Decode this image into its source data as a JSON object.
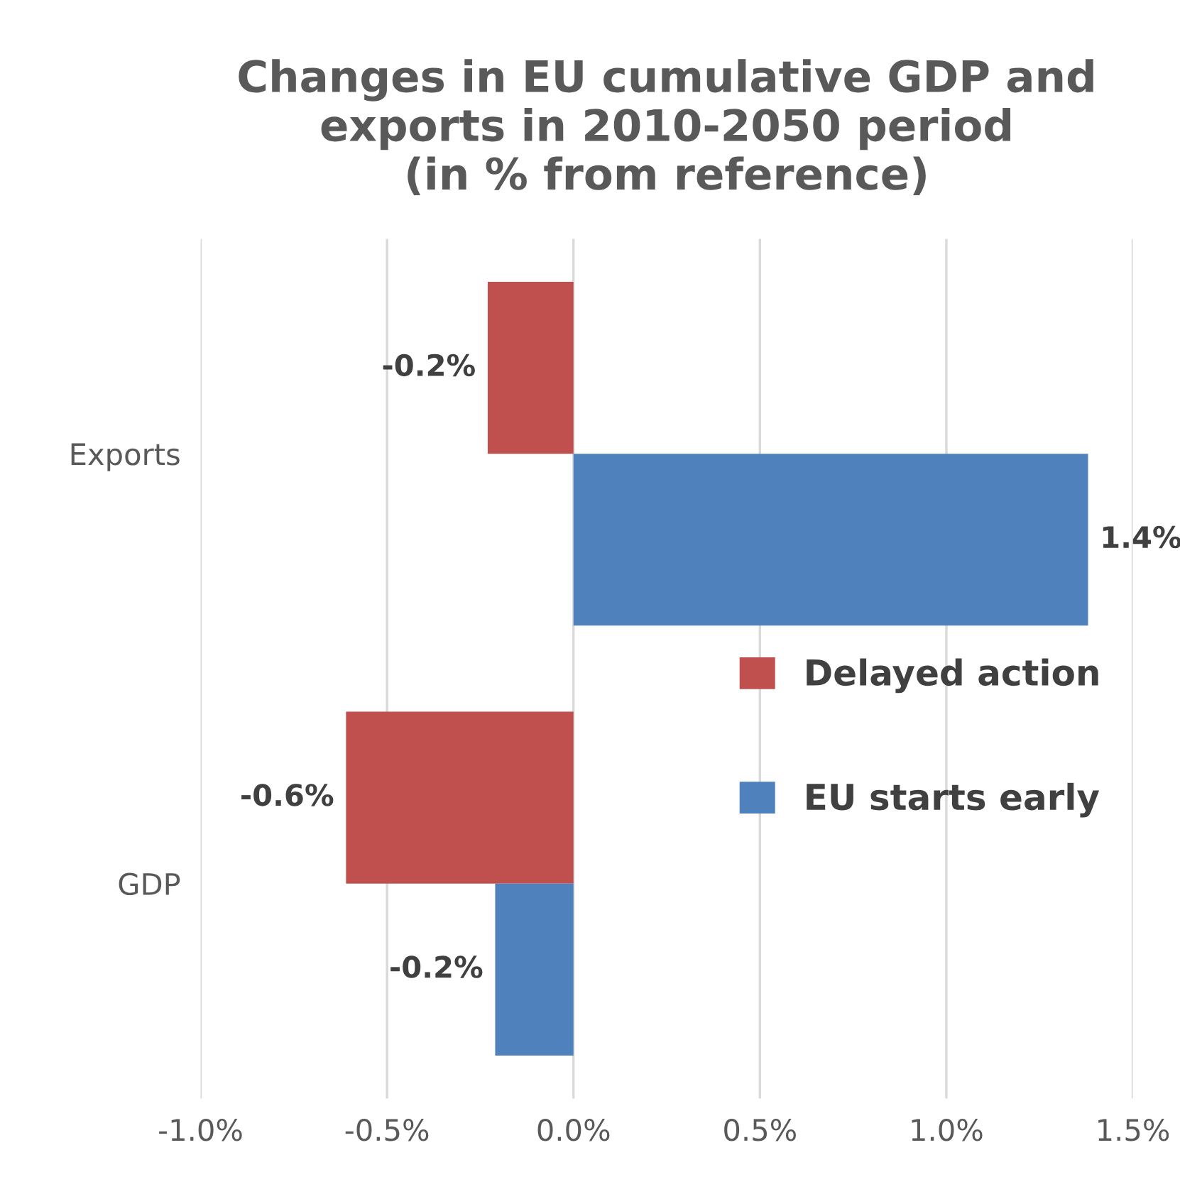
{
  "chart_data": {
    "type": "bar",
    "orientation": "horizontal",
    "title": "Changes in EU cumulative GDP and\nexports in 2010-2050 period\n(in % from reference)",
    "categories": [
      "Exports",
      "GDP"
    ],
    "series": [
      {
        "name": "Delayed action",
        "color": "#c0504d",
        "values": [
          -0.23,
          -0.61
        ],
        "value_labels": [
          "-0.2%",
          "-0.6%"
        ]
      },
      {
        "name": "EU starts early",
        "color": "#4f81bd",
        "values": [
          1.38,
          -0.21
        ],
        "value_labels": [
          "1.4%",
          "-0.2%"
        ]
      }
    ],
    "xlim": [
      -1.0,
      1.5
    ],
    "xticks": [
      {
        "value": -1.0,
        "label": "-1.0%"
      },
      {
        "value": -0.5,
        "label": "-0.5%"
      },
      {
        "value": 0.0,
        "label": "0.0%"
      },
      {
        "value": 0.5,
        "label": "0.5%"
      },
      {
        "value": 1.0,
        "label": "1.0%"
      },
      {
        "value": 1.5,
        "label": "1.5%"
      }
    ],
    "grid": "x",
    "legend": "right"
  }
}
